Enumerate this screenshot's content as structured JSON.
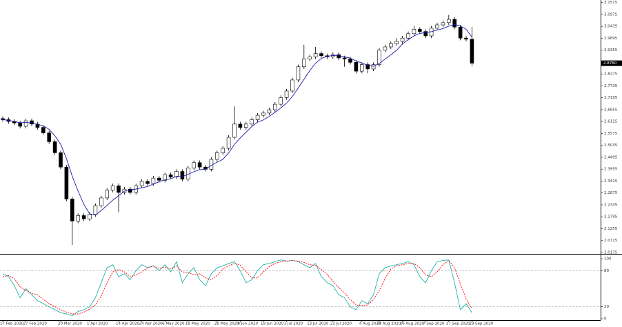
{
  "chart_data": [
    {
      "type": "candlestick",
      "categories": [
        "17 Feb 2020",
        null,
        null,
        null,
        "27 Feb 2020",
        null,
        null,
        null,
        null,
        null,
        "20 Mar 2020",
        null,
        null,
        null,
        null,
        "1 Apr 2020",
        null,
        null,
        null,
        null,
        "14 Apr 2020",
        null,
        null,
        null,
        "24 Apr 2020",
        null,
        null,
        null,
        "6 May 2020",
        null,
        null,
        null,
        "18 May 2020",
        null,
        null,
        null,
        null,
        "28 May 2020",
        null,
        null,
        null,
        "9 Jun 2020",
        null,
        null,
        null,
        "19 Jun 2020",
        null,
        null,
        null,
        "1 Jul 2020",
        null,
        null,
        null,
        "13 Jul 2020",
        null,
        null,
        null,
        "23 Jul 2020",
        null,
        null,
        null,
        null,
        "4 Aug 2020",
        null,
        null,
        "14 Aug 2020",
        null,
        null,
        null,
        "26 Aug 2020",
        null,
        null,
        null,
        "7 Sep 2020",
        null,
        null,
        null,
        "17 Sep 2020",
        null,
        null,
        null,
        "29 Sep 2020"
      ],
      "open": [
        2.625,
        2.62,
        2.612,
        2.605,
        2.59,
        2.615,
        2.6,
        2.585,
        2.56,
        2.52,
        2.47,
        2.405,
        2.26,
        2.16,
        2.185,
        2.17,
        2.19,
        2.23,
        2.265,
        2.3,
        2.32,
        2.29,
        2.305,
        2.29,
        2.32,
        2.34,
        2.33,
        2.355,
        2.345,
        2.37,
        2.36,
        2.385,
        2.35,
        2.4,
        2.425,
        2.405,
        2.395,
        2.44,
        2.47,
        2.49,
        2.54,
        2.6,
        2.585,
        2.6,
        2.62,
        2.64,
        2.65,
        2.665,
        2.69,
        2.72,
        2.75,
        2.8,
        2.86,
        2.895,
        2.905,
        2.92,
        2.91,
        2.905,
        2.915,
        2.9,
        2.895,
        2.88,
        2.84,
        2.87,
        2.85,
        2.87,
        2.935,
        2.95,
        2.965,
        2.975,
        2.99,
        3.01,
        3.03,
        3.02,
        3.0,
        3.035,
        3.05,
        3.06,
        3.075,
        3.04,
        2.99,
        2.985
      ],
      "high": [
        2.635,
        2.63,
        2.622,
        2.615,
        2.625,
        2.625,
        2.61,
        2.595,
        2.57,
        2.53,
        2.48,
        2.415,
        2.27,
        2.195,
        2.195,
        2.2,
        2.24,
        2.275,
        2.31,
        2.33,
        2.33,
        2.315,
        2.315,
        2.33,
        2.35,
        2.35,
        2.365,
        2.365,
        2.38,
        2.38,
        2.395,
        2.395,
        2.41,
        2.435,
        2.435,
        2.415,
        2.45,
        2.48,
        2.5,
        2.55,
        2.68,
        2.61,
        2.61,
        2.63,
        2.65,
        2.66,
        2.675,
        2.7,
        2.73,
        2.76,
        2.81,
        2.87,
        2.96,
        2.915,
        2.95,
        2.93,
        2.92,
        2.925,
        2.925,
        2.91,
        2.905,
        2.89,
        2.88,
        2.88,
        2.88,
        2.945,
        2.96,
        2.975,
        2.99,
        3.0,
        3.02,
        3.045,
        3.04,
        3.03,
        3.045,
        3.06,
        3.07,
        3.095,
        3.085,
        3.05,
        3.0,
        3.04
      ],
      "low": [
        2.61,
        2.602,
        2.595,
        2.58,
        2.58,
        2.59,
        2.575,
        2.55,
        2.51,
        2.46,
        2.395,
        2.25,
        2.052,
        2.15,
        2.16,
        2.16,
        2.18,
        2.22,
        2.255,
        2.29,
        2.2,
        2.28,
        2.28,
        2.28,
        2.31,
        2.32,
        2.32,
        2.335,
        2.335,
        2.35,
        2.35,
        2.34,
        2.34,
        2.39,
        2.395,
        2.385,
        2.385,
        2.43,
        2.46,
        2.48,
        2.53,
        2.575,
        2.575,
        2.59,
        2.61,
        2.63,
        2.64,
        2.655,
        2.68,
        2.71,
        2.74,
        2.79,
        2.85,
        2.885,
        2.895,
        2.9,
        2.895,
        2.895,
        2.89,
        2.86,
        2.87,
        2.83,
        2.83,
        2.83,
        2.84,
        2.86,
        2.925,
        2.94,
        2.955,
        2.965,
        2.98,
        3.0,
        3.01,
        2.99,
        2.99,
        3.025,
        3.04,
        3.05,
        3.03,
        2.98,
        2.975,
        2.862
      ],
      "close": [
        2.62,
        2.612,
        2.605,
        2.59,
        2.615,
        2.6,
        2.585,
        2.56,
        2.52,
        2.47,
        2.405,
        2.26,
        2.16,
        2.185,
        2.17,
        2.19,
        2.23,
        2.265,
        2.3,
        2.32,
        2.29,
        2.305,
        2.29,
        2.32,
        2.34,
        2.33,
        2.355,
        2.345,
        2.37,
        2.36,
        2.385,
        2.35,
        2.4,
        2.425,
        2.405,
        2.395,
        2.44,
        2.47,
        2.49,
        2.54,
        2.6,
        2.585,
        2.6,
        2.62,
        2.64,
        2.65,
        2.665,
        2.69,
        2.72,
        2.75,
        2.8,
        2.86,
        2.895,
        2.905,
        2.92,
        2.91,
        2.905,
        2.915,
        2.9,
        2.895,
        2.88,
        2.84,
        2.87,
        2.85,
        2.87,
        2.935,
        2.95,
        2.965,
        2.975,
        2.99,
        3.01,
        3.03,
        3.02,
        3.0,
        3.035,
        3.05,
        3.06,
        3.075,
        3.04,
        2.99,
        2.985,
        2.876
      ],
      "up_color": "#ffffff",
      "down_color": "#000000",
      "overlay": {
        "type": "line",
        "color": "#1a1aa8",
        "values": [
          2.62,
          2.617,
          2.612,
          2.606,
          2.608,
          2.604,
          2.599,
          2.592,
          2.576,
          2.547,
          2.508,
          2.443,
          2.363,
          2.296,
          2.236,
          2.193,
          2.187,
          2.208,
          2.231,
          2.255,
          2.275,
          2.296,
          2.302,
          2.305,
          2.311,
          2.317,
          2.328,
          2.338,
          2.348,
          2.352,
          2.363,
          2.362,
          2.372,
          2.384,
          2.393,
          2.395,
          2.413,
          2.427,
          2.44,
          2.469,
          2.508,
          2.537,
          2.563,
          2.589,
          2.609,
          2.619,
          2.635,
          2.653,
          2.673,
          2.695,
          2.725,
          2.763,
          2.803,
          2.842,
          2.876,
          2.898,
          2.907,
          2.911,
          2.91,
          2.905,
          2.899,
          2.886,
          2.877,
          2.867,
          2.862,
          2.875,
          2.895,
          2.914,
          2.935,
          2.963,
          2.983,
          3.0,
          3.011,
          3.015,
          3.019,
          3.027,
          3.033,
          3.044,
          3.052,
          3.045,
          3.03,
          2.995
        ]
      },
      "ylim": [
        2.0175,
        3.1565
      ],
      "yticks": [
        2.0175,
        2.0715,
        2.1255,
        2.1795,
        2.2335,
        2.2875,
        2.3415,
        2.3955,
        2.4495,
        2.5035,
        2.5575,
        2.6115,
        2.6655,
        2.7195,
        2.7735,
        2.8275,
        2.8815,
        2.9355,
        2.9895,
        3.0435,
        3.0975,
        3.1515
      ],
      "last_price": {
        "value": 2.876,
        "label": "2.8760"
      }
    },
    {
      "type": "line",
      "series": [
        {
          "color": "#20b2aa",
          "values": [
            75,
            70,
            55,
            35,
            50,
            40,
            30,
            25,
            20,
            15,
            10,
            8,
            5,
            12,
            15,
            20,
            35,
            60,
            85,
            90,
            70,
            75,
            65,
            80,
            90,
            85,
            88,
            80,
            90,
            78,
            95,
            60,
            75,
            85,
            65,
            55,
            75,
            85,
            88,
            92,
            95,
            80,
            60,
            65,
            80,
            90,
            92,
            95,
            98,
            96,
            97,
            95,
            90,
            85,
            92,
            70,
            60,
            55,
            40,
            35,
            20,
            15,
            30,
            25,
            40,
            75,
            85,
            88,
            90,
            92,
            95,
            90,
            70,
            60,
            80,
            95,
            97,
            98,
            60,
            15,
            25,
            10
          ]
        },
        {
          "color": "#ff0000",
          "dash": true,
          "values": [
            70,
            72,
            67,
            53,
            47,
            42,
            40,
            32,
            25,
            20,
            15,
            11,
            8,
            8,
            11,
            16,
            23,
            38,
            60,
            78,
            82,
            78,
            70,
            73,
            78,
            85,
            88,
            84,
            86,
            83,
            88,
            78,
            77,
            73,
            75,
            68,
            65,
            72,
            83,
            88,
            92,
            89,
            78,
            68,
            68,
            78,
            87,
            92,
            95,
            96,
            97,
            96,
            94,
            90,
            89,
            82,
            74,
            62,
            52,
            43,
            32,
            23,
            22,
            23,
            32,
            47,
            67,
            83,
            88,
            90,
            92,
            92,
            85,
            73,
            70,
            78,
            90,
            97,
            85,
            58,
            33,
            17
          ]
        }
      ],
      "ylim": [
        0,
        100
      ],
      "yticks": [
        0,
        20,
        80,
        100
      ],
      "levels": [
        20,
        80
      ]
    }
  ]
}
